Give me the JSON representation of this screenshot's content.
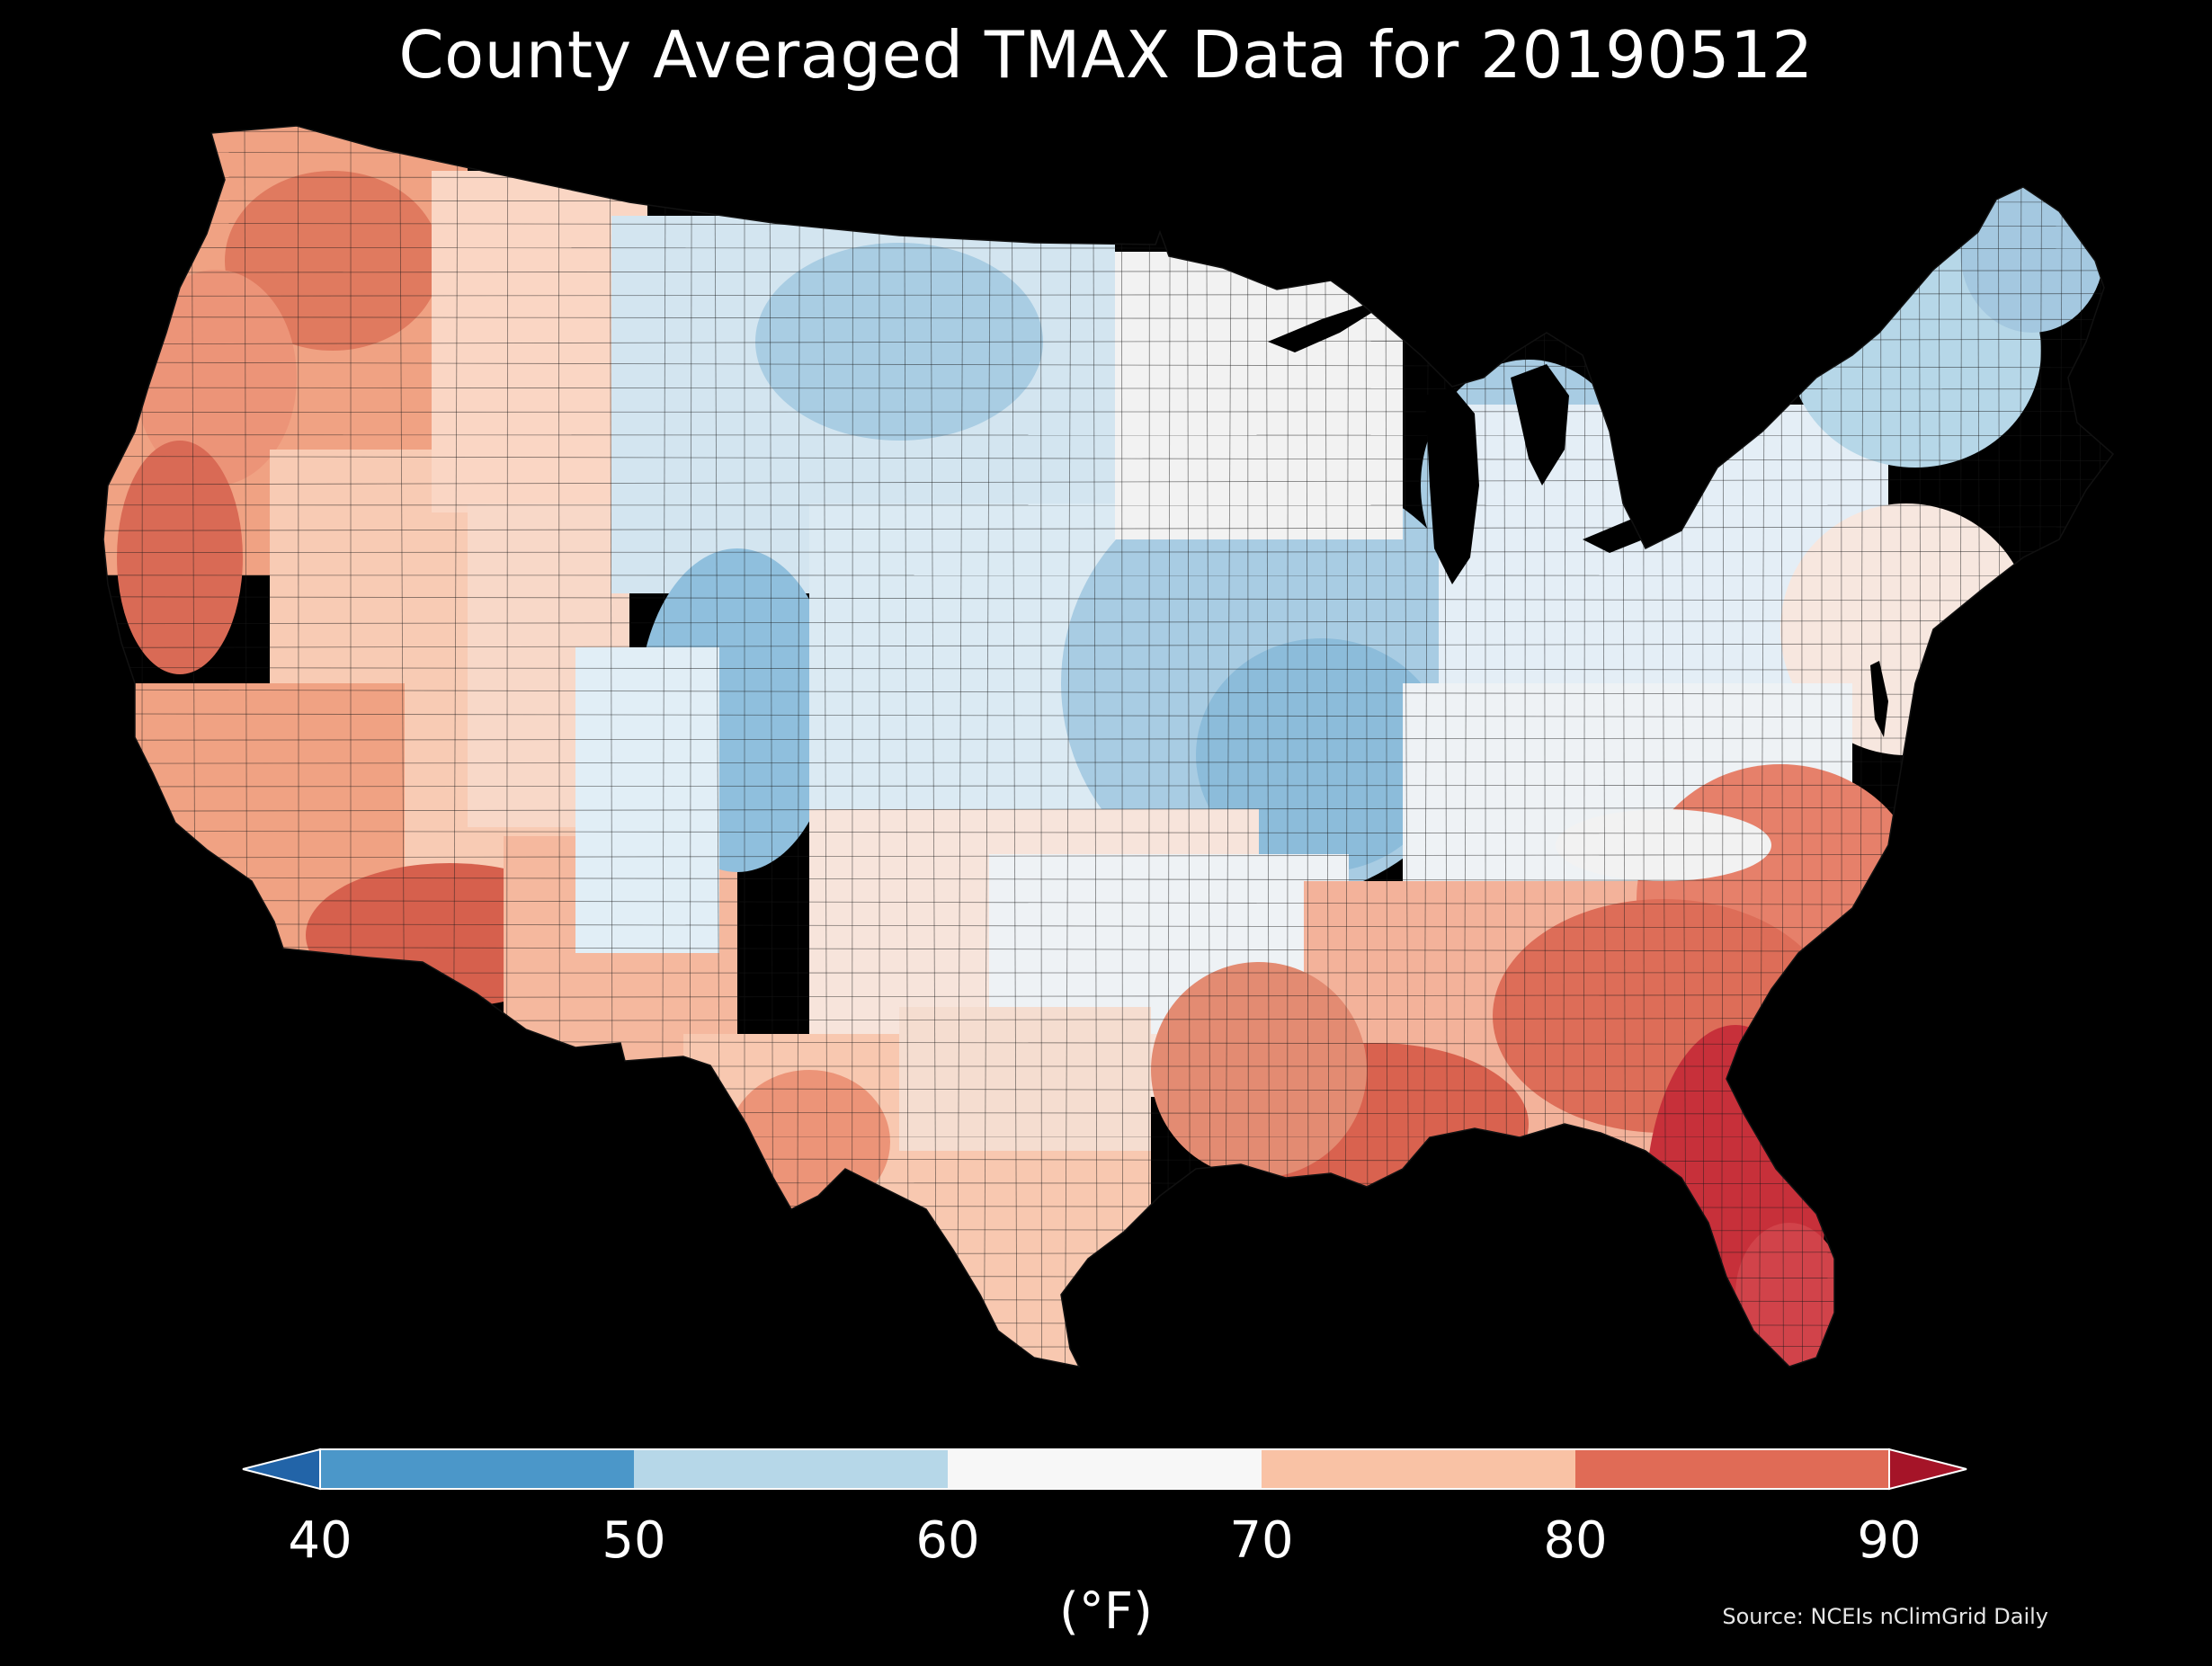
{
  "title": "County Averaged TMAX Data for 20190512",
  "colorbar": {
    "label": "(°F)",
    "ticks": [
      "40",
      "50",
      "60",
      "70",
      "80",
      "90"
    ],
    "bins": [
      {
        "from": 40,
        "to": 50,
        "color": "#4b97c9"
      },
      {
        "from": 50,
        "to": 60,
        "color": "#b6d7e8"
      },
      {
        "from": 60,
        "to": 70,
        "color": "#f7f7f7"
      },
      {
        "from": 70,
        "to": 80,
        "color": "#f9c2a5"
      },
      {
        "from": 80,
        "to": 90,
        "color": "#e06b56"
      }
    ],
    "under_color": "#2264a8",
    "over_color": "#a51428",
    "extend": "both"
  },
  "source": "Source: NCEIs nClimGrid Daily",
  "map": {
    "background": "#000000",
    "boundary_color": "#1a1a1a",
    "region_colors": {
      "northwest": "#f0a283",
      "northwest_interior": "#e07a5f",
      "great_basin": "#f8cbb4",
      "california_coast": "#ec9478",
      "desert_southwest": "#d6604d",
      "rockies": "#8fbfdd",
      "northern_plains": "#d3e5f0",
      "midwest": "#a8cce3",
      "great_lakes": "#c6dff0",
      "northeast": "#e4eef6",
      "maine": "#a4c8e0",
      "southern_plains": "#f7ddd0",
      "texas": "#f8c8b0",
      "southeast": "#e6806a",
      "gulf_coast": "#d9624f",
      "florida": "#c7303a"
    }
  }
}
